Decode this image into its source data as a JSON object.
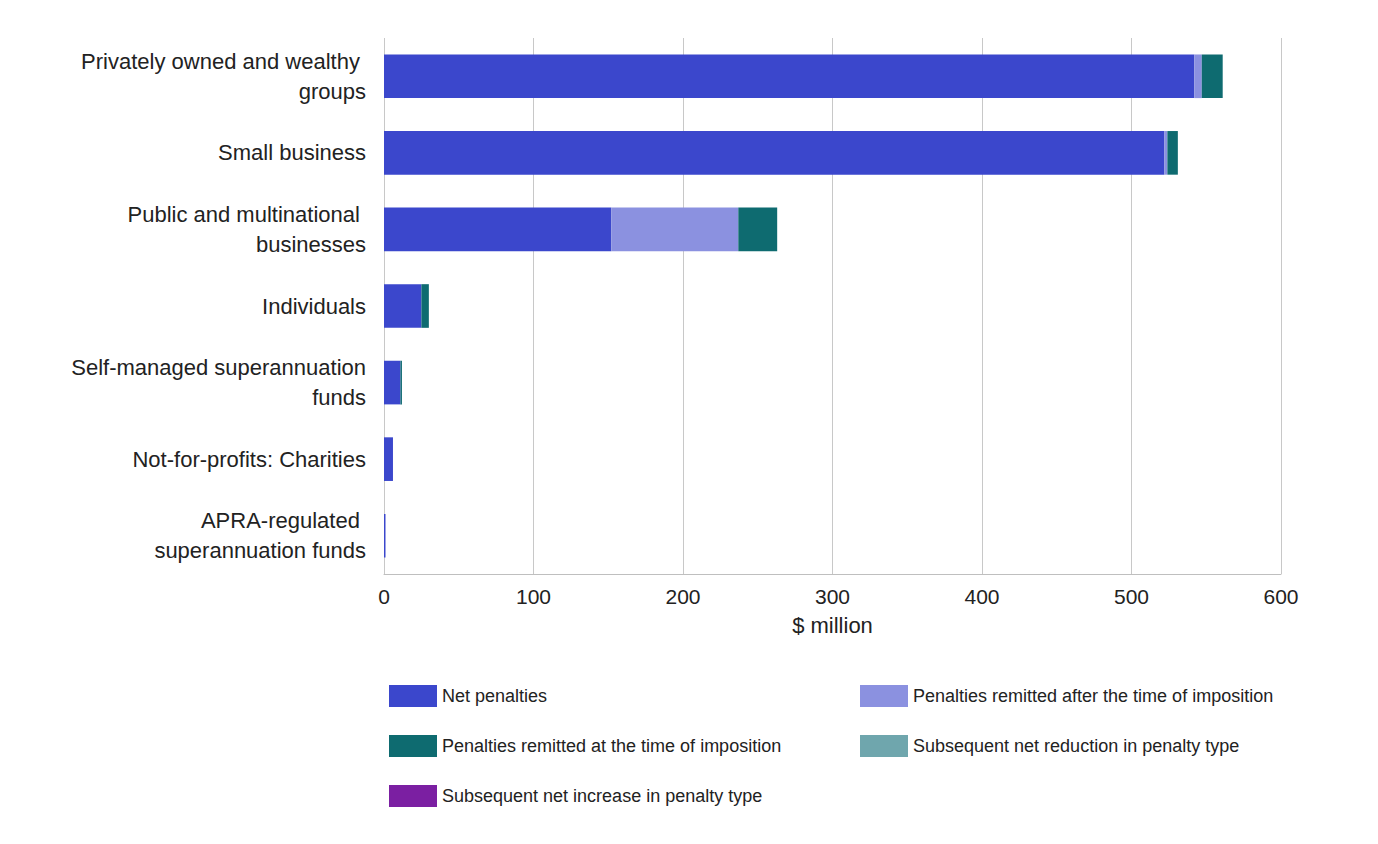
{
  "chart_data": {
    "type": "bar",
    "orientation": "horizontal",
    "stacked": true,
    "grid": true,
    "legend": "bottom",
    "x_label": "$ million",
    "categories": [
      "Privately owned and wealthy groups",
      "Small business",
      "Public and multinational businesses",
      "Individuals",
      "Self-managed superannuation funds",
      "Not-for-profits: Charities",
      "APRA-regulated superannuation funds"
    ],
    "xlim": [
      0,
      600
    ],
    "xticks": [
      0,
      100,
      200,
      300,
      400,
      500,
      600
    ],
    "series": [
      {
        "name": "Net penalties",
        "color": "#3b47cc",
        "values": [
          542,
          522,
          152,
          25,
          11,
          6,
          1
        ]
      },
      {
        "name": "Penalties remitted after the time of imposition",
        "color": "#8b91e0",
        "values": [
          5,
          2,
          85,
          0,
          0,
          0,
          0
        ]
      },
      {
        "name": "Penalties remitted at the time of imposition",
        "color": "#0e6b70",
        "values": [
          14,
          7,
          26,
          5,
          1,
          0,
          0
        ]
      },
      {
        "name": "Subsequent net reduction in penalty type",
        "color": "#6fa6ad",
        "values": [
          0,
          0,
          0,
          0,
          0,
          0,
          0
        ]
      },
      {
        "name": "Subsequent net increase in penalty type",
        "color": "#7b1fa2",
        "values": [
          0,
          0,
          0,
          0,
          0,
          0,
          0
        ]
      }
    ]
  }
}
